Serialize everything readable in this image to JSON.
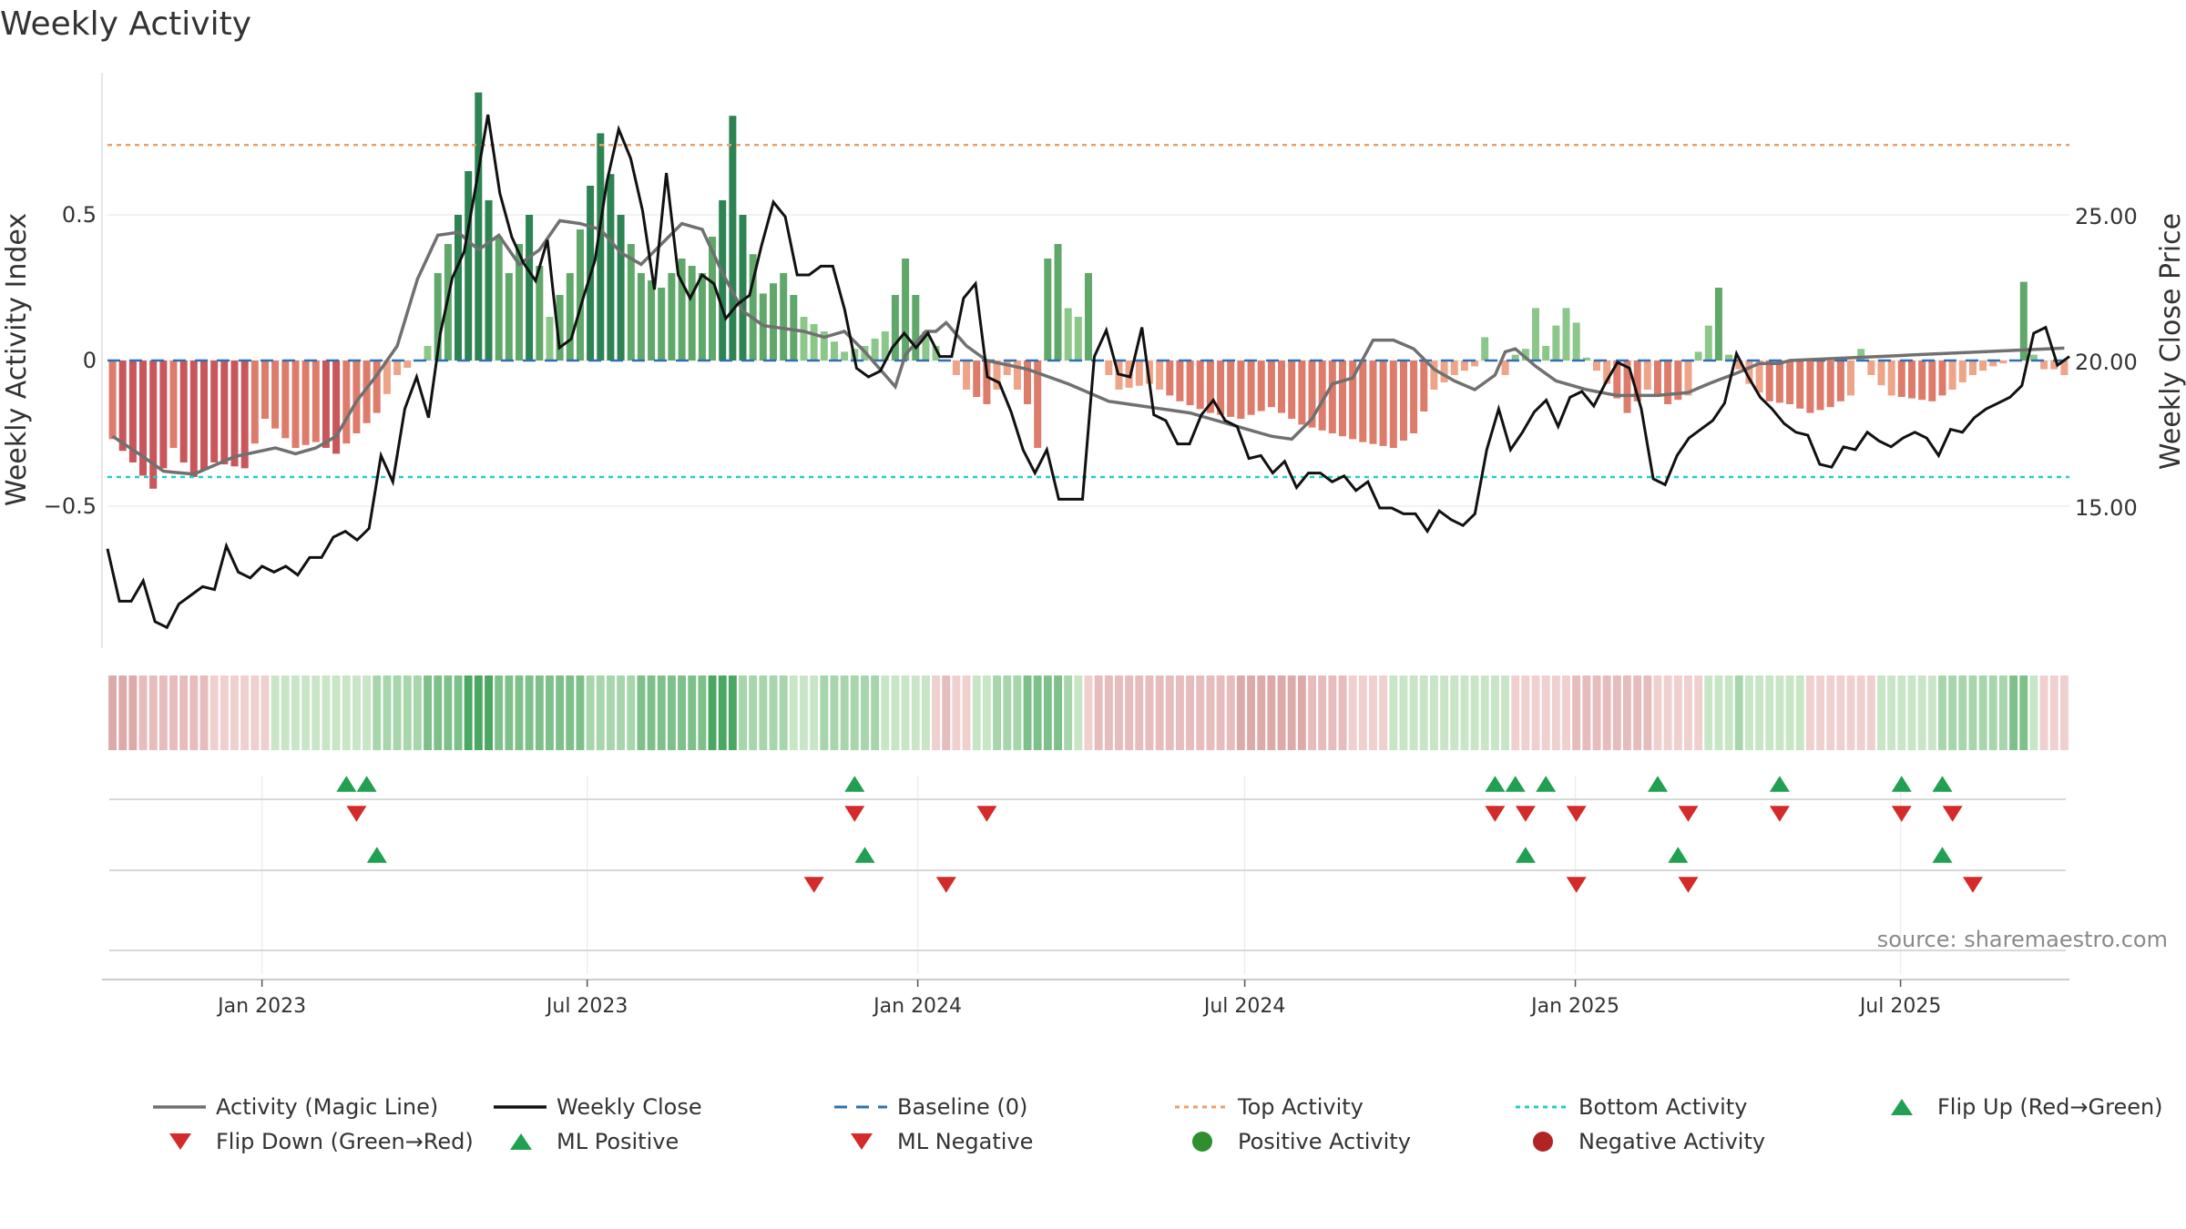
{
  "chart_data": {
    "type": "bar",
    "title": "Weekly Activity",
    "ylabel": "Weekly Activity Index",
    "y2label": "Weekly Close Price",
    "ylim": [
      -1.0,
      1.0
    ],
    "y2lim": [
      10.0,
      30.0
    ],
    "yticks": [
      {
        "value": 0.5,
        "label": "0.5"
      },
      {
        "value": 0,
        "label": "0"
      },
      {
        "value": -0.5,
        "label": "−0.5"
      }
    ],
    "y2ticks": [
      {
        "value": 25,
        "label": "25.00"
      },
      {
        "value": 20,
        "label": "20.00"
      },
      {
        "value": 15,
        "label": "15.00"
      }
    ],
    "date_start": "2022-10-07",
    "date_end": "2025-10-03",
    "xticks": [
      {
        "date": "2023-01-01",
        "label": "Jan 2023"
      },
      {
        "date": "2023-07-01",
        "label": "Jul 2023"
      },
      {
        "date": "2024-01-01",
        "label": "Jan 2024"
      },
      {
        "date": "2024-07-01",
        "label": "Jul 2024"
      },
      {
        "date": "2025-01-01",
        "label": "Jan 2025"
      },
      {
        "date": "2025-07-01",
        "label": "Jul 2025"
      }
    ],
    "top_activity": 0.74,
    "bottom_activity": -0.4,
    "activity_anchors": [
      [
        0,
        -0.27
      ],
      [
        2,
        -0.35
      ],
      [
        4,
        -0.44
      ],
      [
        6,
        -0.3
      ],
      [
        8,
        -0.4
      ],
      [
        10,
        -0.35
      ],
      [
        13,
        -0.37
      ],
      [
        15,
        -0.2
      ],
      [
        18,
        -0.3
      ],
      [
        20,
        -0.28
      ],
      [
        22,
        -0.32
      ],
      [
        24,
        -0.25
      ],
      [
        26,
        -0.18
      ],
      [
        28,
        -0.05
      ],
      [
        30,
        0.0
      ],
      [
        31,
        0.05
      ],
      [
        32,
        0.3
      ],
      [
        34,
        0.5
      ],
      [
        35,
        0.65
      ],
      [
        36,
        0.92
      ],
      [
        37,
        0.55
      ],
      [
        39,
        0.3
      ],
      [
        41,
        0.5
      ],
      [
        43,
        0.15
      ],
      [
        45,
        0.3
      ],
      [
        47,
        0.6
      ],
      [
        48,
        0.78
      ],
      [
        50,
        0.5
      ],
      [
        52,
        0.3
      ],
      [
        54,
        0.25
      ],
      [
        56,
        0.35
      ],
      [
        58,
        0.3
      ],
      [
        60,
        0.55
      ],
      [
        61,
        0.84
      ],
      [
        62,
        0.5
      ],
      [
        64,
        0.23
      ],
      [
        66,
        0.3
      ],
      [
        68,
        0.15
      ],
      [
        70,
        0.1
      ],
      [
        72,
        0.03
      ],
      [
        74,
        0.05
      ],
      [
        76,
        0.1
      ],
      [
        78,
        0.35
      ],
      [
        80,
        0.1
      ],
      [
        82,
        0.0
      ],
      [
        84,
        -0.1
      ],
      [
        86,
        -0.15
      ],
      [
        88,
        -0.05
      ],
      [
        90,
        -0.15
      ],
      [
        91,
        -0.3
      ],
      [
        92,
        0.35
      ],
      [
        93,
        0.4
      ],
      [
        94,
        0.18
      ],
      [
        95,
        0.15
      ],
      [
        96,
        0.3
      ],
      [
        97,
        0.0
      ],
      [
        99,
        -0.1
      ],
      [
        102,
        -0.08
      ],
      [
        105,
        -0.14
      ],
      [
        108,
        -0.18
      ],
      [
        111,
        -0.2
      ],
      [
        114,
        -0.16
      ],
      [
        117,
        -0.22
      ],
      [
        120,
        -0.25
      ],
      [
        123,
        -0.28
      ],
      [
        126,
        -0.3
      ],
      [
        128,
        -0.25
      ],
      [
        130,
        -0.1
      ],
      [
        132,
        -0.05
      ],
      [
        134,
        -0.02
      ],
      [
        135,
        0.08
      ],
      [
        136,
        0.0
      ],
      [
        137,
        -0.05
      ],
      [
        138,
        0.02
      ],
      [
        139,
        0.04
      ],
      [
        140,
        0.18
      ],
      [
        141,
        0.05
      ],
      [
        142,
        0.12
      ],
      [
        143,
        0.18
      ],
      [
        144,
        0.13
      ],
      [
        145,
        0.01
      ],
      [
        147,
        -0.08
      ],
      [
        149,
        -0.18
      ],
      [
        151,
        -0.1
      ],
      [
        153,
        -0.15
      ],
      [
        155,
        -0.12
      ],
      [
        156,
        0.03
      ],
      [
        157,
        0.12
      ],
      [
        158,
        0.25
      ],
      [
        159,
        0.02
      ],
      [
        161,
        -0.08
      ],
      [
        163,
        -0.14
      ],
      [
        165,
        -0.15
      ],
      [
        167,
        -0.18
      ],
      [
        169,
        -0.16
      ],
      [
        171,
        -0.12
      ],
      [
        172,
        0.04
      ],
      [
        173,
        -0.05
      ],
      [
        175,
        -0.12
      ],
      [
        177,
        -0.13
      ],
      [
        179,
        -0.14
      ],
      [
        181,
        -0.1
      ],
      [
        183,
        -0.05
      ],
      [
        185,
        -0.02
      ],
      [
        187,
        0.0
      ],
      [
        188,
        0.27
      ],
      [
        189,
        0.02
      ],
      [
        190,
        -0.03
      ],
      [
        191,
        -0.03
      ],
      [
        192,
        -0.05
      ]
    ],
    "close_anchors": [
      [
        0,
        13.6
      ],
      [
        1,
        11.8
      ],
      [
        2,
        11.8
      ],
      [
        3,
        12.5
      ],
      [
        4,
        11.1
      ],
      [
        5,
        10.9
      ],
      [
        6,
        11.7
      ],
      [
        7,
        12.0
      ],
      [
        8,
        12.3
      ],
      [
        9,
        12.2
      ],
      [
        10,
        13.7
      ],
      [
        11,
        12.8
      ],
      [
        12,
        12.6
      ],
      [
        13,
        13.0
      ],
      [
        14,
        12.8
      ],
      [
        15,
        13.0
      ],
      [
        16,
        12.7
      ],
      [
        17,
        13.3
      ],
      [
        18,
        13.3
      ],
      [
        19,
        14.0
      ],
      [
        20,
        14.2
      ],
      [
        21,
        13.9
      ],
      [
        22,
        14.3
      ],
      [
        23,
        16.8
      ],
      [
        24,
        15.9
      ],
      [
        25,
        18.4
      ],
      [
        26,
        19.5
      ],
      [
        27,
        18.1
      ],
      [
        28,
        21.0
      ],
      [
        29,
        22.9
      ],
      [
        30,
        23.8
      ],
      [
        31,
        26.1
      ],
      [
        32,
        28.5
      ],
      [
        33,
        25.8
      ],
      [
        34,
        24.3
      ],
      [
        35,
        23.4
      ],
      [
        36,
        22.8
      ],
      [
        37,
        24.2
      ],
      [
        38,
        20.5
      ],
      [
        39,
        20.8
      ],
      [
        40,
        22.2
      ],
      [
        41,
        23.5
      ],
      [
        42,
        26.2
      ],
      [
        43,
        28.0
      ],
      [
        44,
        27.0
      ],
      [
        45,
        25.2
      ],
      [
        46,
        22.5
      ],
      [
        47,
        26.5
      ],
      [
        48,
        23.0
      ],
      [
        49,
        22.2
      ],
      [
        50,
        23.0
      ],
      [
        51,
        22.7
      ],
      [
        52,
        21.5
      ],
      [
        53,
        22.0
      ],
      [
        54,
        22.3
      ],
      [
        55,
        24.0
      ],
      [
        56,
        25.5
      ],
      [
        57,
        25.0
      ],
      [
        58,
        23.0
      ],
      [
        59,
        23.0
      ],
      [
        60,
        23.3
      ],
      [
        61,
        23.3
      ],
      [
        62,
        21.8
      ],
      [
        63,
        19.8
      ],
      [
        64,
        19.5
      ],
      [
        65,
        19.7
      ],
      [
        66,
        20.5
      ],
      [
        67,
        21.0
      ],
      [
        68,
        20.5
      ],
      [
        69,
        21.0
      ],
      [
        70,
        20.2
      ],
      [
        71,
        20.2
      ],
      [
        72,
        22.2
      ],
      [
        73,
        22.7
      ],
      [
        74,
        19.5
      ],
      [
        75,
        19.3
      ],
      [
        76,
        18.3
      ],
      [
        77,
        17.0
      ],
      [
        78,
        16.2
      ],
      [
        79,
        17.0
      ],
      [
        80,
        15.3
      ],
      [
        81,
        15.3
      ],
      [
        82,
        15.3
      ],
      [
        83,
        20.2
      ],
      [
        84,
        21.1
      ],
      [
        85,
        19.6
      ],
      [
        86,
        19.5
      ],
      [
        87,
        21.2
      ],
      [
        88,
        18.2
      ],
      [
        89,
        18.0
      ],
      [
        90,
        17.2
      ],
      [
        91,
        17.2
      ],
      [
        92,
        18.2
      ],
      [
        93,
        18.7
      ],
      [
        94,
        18.0
      ],
      [
        95,
        17.8
      ],
      [
        96,
        16.7
      ],
      [
        97,
        16.8
      ],
      [
        98,
        16.2
      ],
      [
        99,
        16.6
      ],
      [
        100,
        15.7
      ],
      [
        101,
        16.2
      ],
      [
        102,
        16.2
      ],
      [
        103,
        15.9
      ],
      [
        104,
        16.1
      ],
      [
        105,
        15.6
      ],
      [
        106,
        15.9
      ],
      [
        107,
        15.0
      ],
      [
        108,
        15.0
      ],
      [
        109,
        14.8
      ],
      [
        110,
        14.8
      ],
      [
        111,
        14.2
      ],
      [
        112,
        14.9
      ],
      [
        113,
        14.6
      ],
      [
        114,
        14.4
      ],
      [
        115,
        14.8
      ],
      [
        116,
        17.0
      ],
      [
        117,
        18.4
      ],
      [
        118,
        17.0
      ],
      [
        119,
        17.6
      ],
      [
        120,
        18.3
      ],
      [
        121,
        18.7
      ],
      [
        122,
        17.8
      ],
      [
        123,
        18.8
      ],
      [
        124,
        19.0
      ],
      [
        125,
        18.5
      ],
      [
        126,
        19.3
      ],
      [
        127,
        20.0
      ],
      [
        128,
        19.8
      ],
      [
        129,
        18.4
      ],
      [
        130,
        16.0
      ],
      [
        131,
        15.8
      ],
      [
        132,
        16.8
      ],
      [
        133,
        17.4
      ],
      [
        134,
        17.7
      ],
      [
        135,
        18.0
      ],
      [
        136,
        18.6
      ],
      [
        137,
        20.3
      ],
      [
        138,
        19.5
      ],
      [
        139,
        18.8
      ],
      [
        140,
        18.4
      ],
      [
        141,
        17.9
      ],
      [
        142,
        17.6
      ],
      [
        143,
        17.5
      ],
      [
        144,
        16.5
      ],
      [
        145,
        16.4
      ],
      [
        146,
        17.1
      ],
      [
        147,
        17.0
      ],
      [
        148,
        17.6
      ],
      [
        149,
        17.3
      ],
      [
        150,
        17.1
      ],
      [
        151,
        17.4
      ],
      [
        152,
        17.6
      ],
      [
        153,
        17.4
      ],
      [
        154,
        16.8
      ],
      [
        155,
        17.7
      ],
      [
        156,
        17.6
      ],
      [
        157,
        18.1
      ],
      [
        158,
        18.4
      ],
      [
        159,
        18.6
      ],
      [
        160,
        18.8
      ],
      [
        161,
        19.2
      ],
      [
        162,
        21.0
      ],
      [
        163,
        21.2
      ],
      [
        164,
        19.9
      ],
      [
        165,
        20.2
      ]
    ],
    "magic_line_anchors": [
      [
        0,
        -0.26
      ],
      [
        3,
        -0.33
      ],
      [
        5,
        -0.38
      ],
      [
        8,
        -0.39
      ],
      [
        12,
        -0.33
      ],
      [
        16,
        -0.3
      ],
      [
        18,
        -0.32
      ],
      [
        20,
        -0.3
      ],
      [
        22,
        -0.26
      ],
      [
        24,
        -0.14
      ],
      [
        26,
        -0.05
      ],
      [
        28,
        0.05
      ],
      [
        30,
        0.28
      ],
      [
        32,
        0.43
      ],
      [
        34,
        0.44
      ],
      [
        36,
        0.38
      ],
      [
        38,
        0.43
      ],
      [
        40,
        0.33
      ],
      [
        42,
        0.38
      ],
      [
        44,
        0.48
      ],
      [
        46,
        0.47
      ],
      [
        48,
        0.45
      ],
      [
        50,
        0.37
      ],
      [
        52,
        0.33
      ],
      [
        54,
        0.4
      ],
      [
        56,
        0.47
      ],
      [
        58,
        0.45
      ],
      [
        60,
        0.3
      ],
      [
        62,
        0.17
      ],
      [
        64,
        0.12
      ],
      [
        68,
        0.1
      ],
      [
        70,
        0.08
      ],
      [
        72,
        0.1
      ],
      [
        74,
        0.03
      ],
      [
        76,
        -0.05
      ],
      [
        77,
        -0.09
      ],
      [
        78,
        0.02
      ],
      [
        80,
        0.1
      ],
      [
        81,
        0.1
      ],
      [
        82,
        0.13
      ],
      [
        84,
        0.05
      ],
      [
        86,
        0.0
      ],
      [
        90,
        -0.03
      ],
      [
        94,
        -0.08
      ],
      [
        98,
        -0.14
      ],
      [
        102,
        -0.16
      ],
      [
        106,
        -0.18
      ],
      [
        110,
        -0.22
      ],
      [
        114,
        -0.26
      ],
      [
        116,
        -0.27
      ],
      [
        118,
        -0.2
      ],
      [
        120,
        -0.08
      ],
      [
        122,
        -0.06
      ],
      [
        124,
        0.07
      ],
      [
        126,
        0.07
      ],
      [
        128,
        0.04
      ],
      [
        130,
        -0.03
      ],
      [
        132,
        -0.07
      ],
      [
        134,
        -0.1
      ],
      [
        136,
        -0.05
      ],
      [
        137,
        0.03
      ],
      [
        138,
        0.04
      ],
      [
        140,
        -0.02
      ],
      [
        142,
        -0.07
      ],
      [
        145,
        -0.1
      ],
      [
        148,
        -0.12
      ],
      [
        152,
        -0.12
      ],
      [
        155,
        -0.11
      ],
      [
        157,
        -0.08
      ],
      [
        160,
        -0.04
      ],
      [
        162,
        -0.01
      ],
      [
        164,
        -0.01
      ],
      [
        165,
        0.0
      ]
    ],
    "close_count": 166,
    "week_count": 193,
    "strip_levels": [
      [
        0,
        -0.3
      ],
      [
        30,
        0.3
      ],
      [
        32,
        0.6
      ],
      [
        36,
        0.9
      ],
      [
        40,
        0.5
      ],
      [
        50,
        0.35
      ],
      [
        61,
        0.9
      ],
      [
        62,
        0.4
      ],
      [
        68,
        0.15
      ],
      [
        72,
        0.3
      ],
      [
        80,
        0.1
      ],
      [
        82,
        -0.15
      ],
      [
        92,
        0.55
      ],
      [
        97,
        -0.15
      ],
      [
        106,
        -0.2
      ],
      [
        116,
        -0.3
      ],
      [
        130,
        0.15
      ],
      [
        145,
        -0.15
      ],
      [
        155,
        -0.1
      ],
      [
        160,
        0.2
      ],
      [
        170,
        -0.1
      ],
      [
        188,
        0.45
      ],
      [
        190,
        -0.1
      ]
    ],
    "flip_up": [
      23,
      25,
      73,
      136,
      138,
      141,
      152,
      164,
      176,
      180
    ],
    "flip_down": [
      24,
      73,
      86,
      136,
      139,
      144,
      155,
      164,
      176,
      181
    ],
    "ml_up": [
      26,
      74,
      139,
      154,
      180
    ],
    "ml_down": [
      69,
      82,
      144,
      155,
      183
    ],
    "source": "source: sharemaestro.com",
    "legend": [
      {
        "label": "Activity (Magic Line)",
        "kind": "line",
        "color": "#707070"
      },
      {
        "label": "Weekly Close",
        "kind": "line",
        "color": "#111111"
      },
      {
        "label": "Baseline (0)",
        "kind": "dash",
        "color": "#2f6fb5"
      },
      {
        "label": "Top Activity",
        "kind": "dot",
        "color": "#e8a06a"
      },
      {
        "label": "Bottom Activity",
        "kind": "dot",
        "color": "#25cdcd"
      },
      {
        "label": "Flip Up (Red→Green)",
        "kind": "tri-up",
        "color": "#20a050"
      },
      {
        "label": "Flip Down (Green→Red)",
        "kind": "tri-down",
        "color": "#d42a2a"
      },
      {
        "label": "ML Positive",
        "kind": "tri-up",
        "color": "#20a050"
      },
      {
        "label": "ML Negative",
        "kind": "tri-down",
        "color": "#d42a2a"
      },
      {
        "label": "Positive Activity",
        "kind": "circle",
        "color": "#2f8f2f"
      },
      {
        "label": "Negative Activity",
        "kind": "circle",
        "color": "#b22424"
      }
    ]
  }
}
